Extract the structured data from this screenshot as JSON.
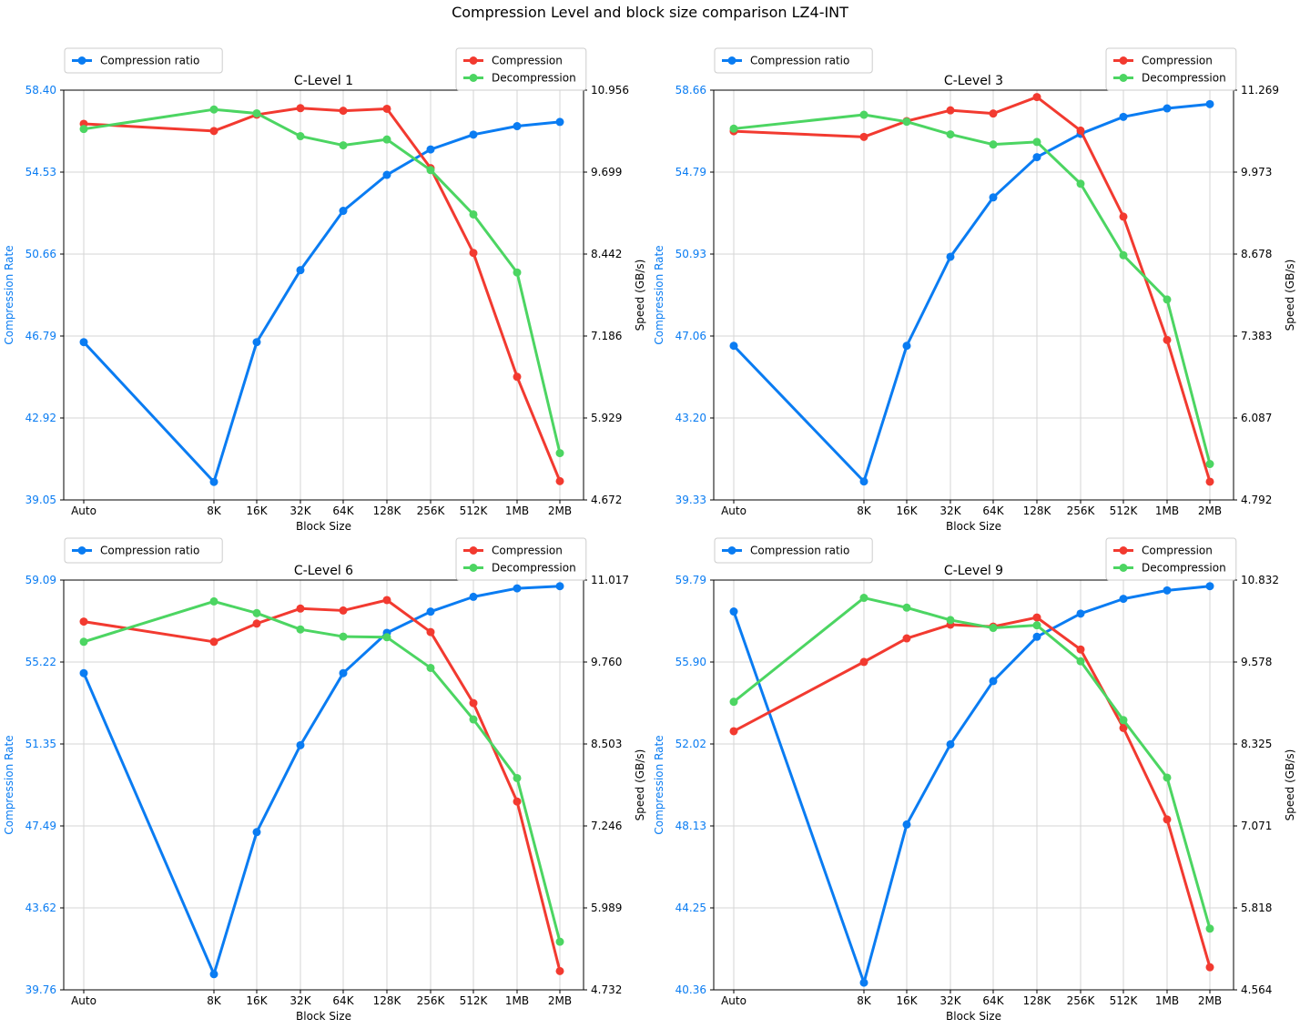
{
  "suptitle": "Compression Level and block size comparison LZ4-INT",
  "colors": {
    "ratio": "#0a7cf2",
    "compression": "#f23a30",
    "decompression": "#4cd562",
    "grid": "#d5d5d5"
  },
  "chart_data": [
    {
      "type": "line",
      "title": "C-Level 1",
      "xlabel": "Block Size",
      "ylabel_left": "Compression Rate",
      "ylabel_right": "Speed (GB/s)",
      "categories": [
        "Auto",
        "8K",
        "16K",
        "32K",
        "64K",
        "128K",
        "256K",
        "512K",
        "1MB",
        "2MB"
      ],
      "left_ticks": [
        "39.05",
        "42.92",
        "46.79",
        "50.66",
        "54.53",
        "58.40"
      ],
      "right_ticks": [
        "4.672",
        "5.929",
        "7.186",
        "8.442",
        "9.699",
        "10.956"
      ],
      "ylim_left": [
        39.05,
        58.4
      ],
      "ylim_right": [
        4.672,
        10.956
      ],
      "grid": true,
      "legend_left": [
        "Compression ratio"
      ],
      "legend_right": [
        "Compression",
        "Decompression"
      ],
      "series": [
        {
          "name": "Compression ratio",
          "axis": "left",
          "color": "ratio",
          "values": [
            46.5,
            39.9,
            46.5,
            49.9,
            52.7,
            54.4,
            55.6,
            56.3,
            56.7,
            56.9
          ]
        },
        {
          "name": "Compression",
          "axis": "right",
          "color": "compression",
          "values": [
            10.44,
            10.33,
            10.58,
            10.68,
            10.64,
            10.67,
            9.76,
            8.46,
            6.56,
            4.96
          ]
        },
        {
          "name": "Decompression",
          "axis": "right",
          "color": "decompression",
          "values": [
            10.36,
            10.66,
            10.6,
            10.25,
            10.11,
            10.2,
            9.73,
            9.05,
            8.16,
            5.39
          ]
        }
      ]
    },
    {
      "type": "line",
      "title": "C-Level 3",
      "xlabel": "Block Size",
      "ylabel_left": "Compression Rate",
      "ylabel_right": "Speed (GB/s)",
      "categories": [
        "Auto",
        "8K",
        "16K",
        "32K",
        "64K",
        "128K",
        "256K",
        "512K",
        "1MB",
        "2MB"
      ],
      "left_ticks": [
        "39.33",
        "43.20",
        "47.06",
        "50.93",
        "54.79",
        "58.66"
      ],
      "right_ticks": [
        "4.792",
        "6.087",
        "7.383",
        "8.678",
        "9.973",
        "11.269"
      ],
      "ylim_left": [
        39.33,
        58.66
      ],
      "ylim_right": [
        4.792,
        11.269
      ],
      "grid": true,
      "legend_left": [
        "Compression ratio"
      ],
      "legend_right": [
        "Compression",
        "Decompression"
      ],
      "series": [
        {
          "name": "Compression ratio",
          "axis": "left",
          "color": "ratio",
          "values": [
            46.6,
            40.2,
            46.6,
            50.8,
            53.6,
            55.5,
            56.6,
            57.4,
            57.8,
            58.0
          ]
        },
        {
          "name": "Compression",
          "axis": "right",
          "color": "compression",
          "values": [
            10.62,
            10.53,
            10.78,
            10.95,
            10.9,
            11.16,
            10.63,
            9.27,
            7.32,
            5.08
          ]
        },
        {
          "name": "Decompression",
          "axis": "right",
          "color": "decompression",
          "values": [
            10.66,
            10.88,
            10.77,
            10.57,
            10.41,
            10.45,
            9.79,
            8.66,
            7.96,
            5.36
          ]
        }
      ]
    },
    {
      "type": "line",
      "title": "C-Level 6",
      "xlabel": "Block Size",
      "ylabel_left": "Compression Rate",
      "ylabel_right": "Speed (GB/s)",
      "categories": [
        "Auto",
        "8K",
        "16K",
        "32K",
        "64K",
        "128K",
        "256K",
        "512K",
        "1MB",
        "2MB"
      ],
      "left_ticks": [
        "39.76",
        "43.62",
        "47.49",
        "51.35",
        "55.22",
        "59.09"
      ],
      "right_ticks": [
        "4.732",
        "5.989",
        "7.246",
        "8.503",
        "9.760",
        "11.017"
      ],
      "ylim_left": [
        39.76,
        59.09
      ],
      "ylim_right": [
        4.732,
        11.017
      ],
      "grid": true,
      "legend_left": [
        "Compression ratio"
      ],
      "legend_right": [
        "Compression",
        "Decompression"
      ],
      "series": [
        {
          "name": "Compression ratio",
          "axis": "left",
          "color": "ratio",
          "values": [
            54.7,
            40.5,
            47.2,
            51.3,
            54.7,
            56.6,
            57.6,
            58.3,
            58.7,
            58.8
          ]
        },
        {
          "name": "Compression",
          "axis": "right",
          "color": "compression",
          "values": [
            10.38,
            10.07,
            10.35,
            10.58,
            10.55,
            10.71,
            10.22,
            9.13,
            7.62,
            5.02
          ]
        },
        {
          "name": "Decompression",
          "axis": "right",
          "color": "decompression",
          "values": [
            10.07,
            10.69,
            10.51,
            10.26,
            10.15,
            10.14,
            9.67,
            8.88,
            7.98,
            5.47
          ]
        }
      ]
    },
    {
      "type": "line",
      "title": "C-Level 9",
      "xlabel": "Block Size",
      "ylabel_left": "Compression Rate",
      "ylabel_right": "Speed (GB/s)",
      "categories": [
        "Auto",
        "8K",
        "16K",
        "32K",
        "64K",
        "128K",
        "256K",
        "512K",
        "1MB",
        "2MB"
      ],
      "left_ticks": [
        "40.36",
        "44.25",
        "48.13",
        "52.02",
        "55.90",
        "59.79"
      ],
      "right_ticks": [
        "4.564",
        "5.818",
        "7.071",
        "8.325",
        "9.578",
        "10.832"
      ],
      "ylim_left": [
        40.36,
        59.79
      ],
      "ylim_right": [
        4.564,
        10.832
      ],
      "grid": true,
      "legend_left": [
        "Compression ratio"
      ],
      "legend_right": [
        "Compression",
        "Decompression"
      ],
      "series": [
        {
          "name": "Compression ratio",
          "axis": "left",
          "color": "ratio",
          "values": [
            58.3,
            40.7,
            48.2,
            52.0,
            55.0,
            57.1,
            58.2,
            58.9,
            59.3,
            59.5
          ]
        },
        {
          "name": "Compression",
          "axis": "right",
          "color": "compression",
          "values": [
            8.52,
            9.58,
            9.94,
            10.15,
            10.12,
            10.26,
            9.77,
            8.57,
            7.17,
            4.91
          ]
        },
        {
          "name": "Decompression",
          "axis": "right",
          "color": "decompression",
          "values": [
            8.97,
            10.56,
            10.41,
            10.22,
            10.1,
            10.14,
            9.59,
            8.69,
            7.81,
            5.5
          ]
        }
      ]
    }
  ]
}
